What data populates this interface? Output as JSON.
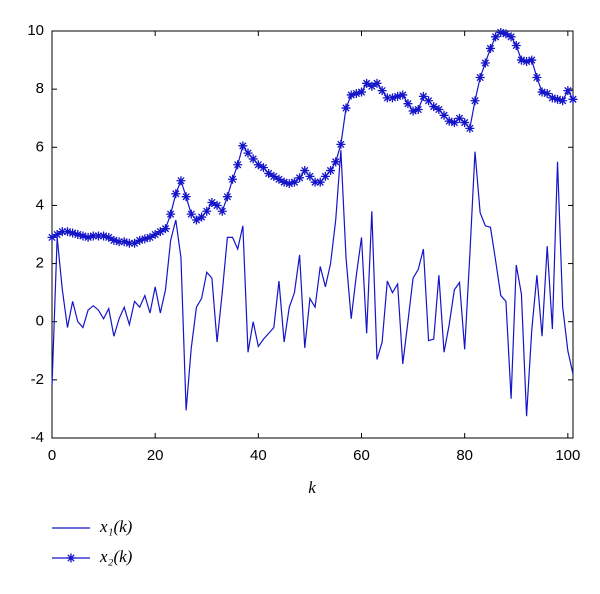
{
  "chart_data": {
    "type": "line",
    "x_label": "k",
    "x": [
      0,
      1,
      2,
      3,
      4,
      5,
      6,
      7,
      8,
      9,
      10,
      11,
      12,
      13,
      14,
      15,
      16,
      17,
      18,
      19,
      20,
      21,
      22,
      23,
      24,
      25,
      26,
      27,
      28,
      29,
      30,
      31,
      32,
      33,
      34,
      35,
      36,
      37,
      38,
      39,
      40,
      41,
      42,
      43,
      44,
      45,
      46,
      47,
      48,
      49,
      50,
      51,
      52,
      53,
      54,
      55,
      56,
      57,
      58,
      59,
      60,
      61,
      62,
      63,
      64,
      65,
      66,
      67,
      68,
      69,
      70,
      71,
      72,
      73,
      74,
      75,
      76,
      77,
      78,
      79,
      80,
      81,
      82,
      83,
      84,
      85,
      86,
      87,
      88,
      89,
      90,
      91,
      92,
      93,
      94,
      95,
      96,
      97,
      98,
      99,
      100,
      101
    ],
    "series": [
      {
        "name": "x₁(k)",
        "color": "#1414c8",
        "marker": "none",
        "values": [
          -2.2,
          2.9,
          1.1,
          -0.2,
          0.7,
          0.0,
          -0.2,
          0.4,
          0.55,
          0.4,
          0.1,
          0.45,
          -0.5,
          0.1,
          0.5,
          -0.1,
          0.7,
          0.5,
          0.9,
          0.3,
          1.2,
          0.3,
          1.1,
          2.8,
          3.5,
          2.2,
          -3.05,
          -0.9,
          0.5,
          0.8,
          1.7,
          1.5,
          -0.7,
          1.0,
          2.9,
          2.9,
          2.5,
          3.3,
          -1.05,
          0.0,
          -0.85,
          -0.6,
          -0.4,
          -0.2,
          1.4,
          -0.7,
          0.5,
          1.0,
          2.3,
          -0.9,
          0.8,
          0.5,
          1.9,
          1.2,
          2.0,
          3.5,
          5.9,
          2.2,
          0.1,
          1.6,
          2.9,
          -0.4,
          3.8,
          -1.3,
          -0.7,
          1.4,
          1.0,
          1.3,
          -1.45,
          0.0,
          1.5,
          1.8,
          2.5,
          -0.65,
          -0.6,
          1.6,
          -1.05,
          -0.1,
          1.1,
          1.35,
          -0.95,
          2.3,
          5.85,
          3.75,
          3.3,
          3.25,
          2.1,
          0.9,
          0.7,
          -2.65,
          1.95,
          0.95,
          -3.25,
          -0.3,
          1.6,
          -0.5,
          2.6,
          -0.25,
          5.5,
          0.5,
          -1.0,
          -1.8
        ]
      },
      {
        "name": "x₂(k)",
        "color": "#1414c8",
        "marker": "star",
        "values": [
          2.9,
          3.0,
          3.1,
          3.1,
          3.05,
          3.0,
          2.95,
          2.9,
          2.95,
          2.95,
          2.95,
          2.9,
          2.8,
          2.75,
          2.75,
          2.7,
          2.7,
          2.8,
          2.85,
          2.9,
          3.0,
          3.1,
          3.2,
          3.7,
          4.4,
          4.85,
          4.3,
          3.7,
          3.5,
          3.6,
          3.8,
          4.1,
          4.0,
          3.8,
          4.3,
          4.9,
          5.4,
          6.05,
          5.8,
          5.6,
          5.4,
          5.3,
          5.1,
          5.0,
          4.9,
          4.8,
          4.75,
          4.8,
          4.95,
          5.2,
          5.0,
          4.8,
          4.8,
          5.0,
          5.2,
          5.5,
          6.1,
          7.35,
          7.8,
          7.85,
          7.9,
          8.2,
          8.1,
          8.2,
          7.95,
          7.7,
          7.7,
          7.75,
          7.8,
          7.5,
          7.25,
          7.3,
          7.75,
          7.6,
          7.4,
          7.3,
          7.1,
          6.9,
          6.85,
          7.0,
          6.85,
          6.65,
          7.6,
          8.4,
          8.9,
          9.4,
          9.8,
          9.95,
          9.9,
          9.8,
          9.5,
          9.0,
          8.95,
          9.0,
          8.4,
          7.9,
          7.85,
          7.7,
          7.65,
          7.6,
          7.95,
          7.65
        ]
      }
    ],
    "xlim": [
      0,
      101
    ],
    "xticks": [
      0,
      20,
      40,
      60,
      80,
      100
    ],
    "ylim": [
      -4,
      10
    ],
    "yticks": [
      -4,
      -2,
      0,
      2,
      4,
      6,
      8,
      10
    ],
    "grid": false,
    "legend": "below"
  }
}
